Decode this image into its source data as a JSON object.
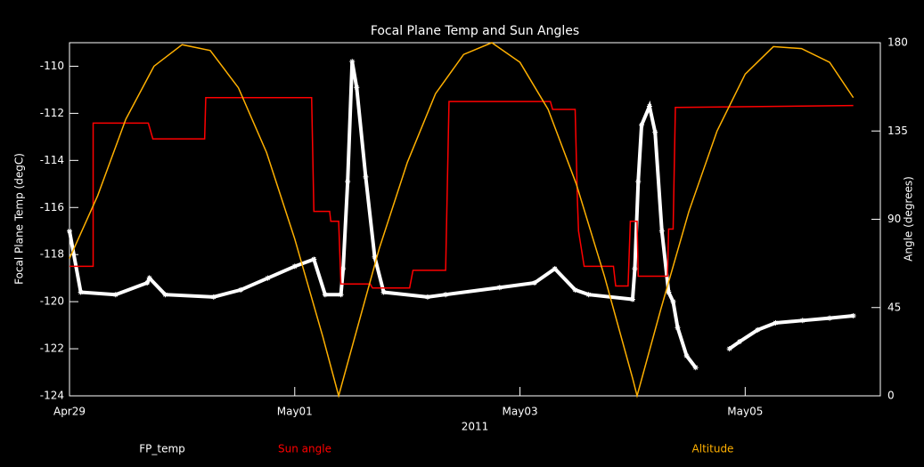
{
  "chart_data": {
    "type": "line",
    "title": "Focal Plane Temp and Sun Angles",
    "x_label": "2011",
    "y_label": "Focal Plane Temp (degC)",
    "y2_label": "Angle (degrees)",
    "xlim": [
      0,
      7.2
    ],
    "xticks": [
      {
        "value": 0,
        "label": "Apr29"
      },
      {
        "value": 2,
        "label": "May01"
      },
      {
        "value": 4,
        "label": "May03"
      },
      {
        "value": 6,
        "label": "May05"
      }
    ],
    "ylim": [
      -124,
      -109
    ],
    "yticks": [
      -124,
      -122,
      -120,
      -118,
      -116,
      -114,
      -112,
      -110
    ],
    "y2lim": [
      0,
      180
    ],
    "y2ticks": [
      0,
      45,
      90,
      135,
      180
    ],
    "series": [
      {
        "name": "FP_temp",
        "color": "#ffffff",
        "marker": "asterisk",
        "x": [
          0,
          0.1,
          0.41,
          0.69,
          0.71,
          0.85,
          1.28,
          1.52,
          1.76,
          2.0,
          2.17,
          2.27,
          2.41,
          2.43,
          2.47,
          2.51,
          2.55,
          2.63,
          2.71,
          2.79,
          3.18,
          3.34,
          3.82,
          4.13,
          4.31,
          4.49,
          4.61,
          5.0,
          5.02,
          5.05,
          5.08,
          5.15,
          5.2,
          5.26,
          5.32,
          5.36,
          5.4,
          5.48,
          5.56,
          5.8,
          5.86,
          5.95,
          6.11,
          6.27,
          6.51,
          6.75,
          6.96
        ],
        "values": [
          -117,
          -119.6,
          -119.7,
          -119.2,
          -119.0,
          -119.7,
          -119.8,
          -119.5,
          -119.0,
          -118.5,
          -118.2,
          -119.7,
          -119.7,
          -118.6,
          -114.9,
          -109.8,
          -110.9,
          -114.7,
          -118.1,
          -119.6,
          -119.8,
          -119.7,
          -119.4,
          -119.2,
          -118.6,
          -119.5,
          -119.7,
          -119.9,
          -118.6,
          -114.9,
          -112.5,
          -111.7,
          -112.8,
          -117.0,
          -119.6,
          -120.0,
          -121.1,
          -122.3,
          -122.8,
          null,
          -122.0,
          -121.7,
          -121.2,
          -120.9,
          -120.8,
          -120.7,
          -120.6
        ]
      },
      {
        "name": "Sun angle",
        "color": "#ff0000",
        "axis": "y2",
        "x": [
          0,
          0.21,
          0.21,
          0.7,
          0.74,
          1.2,
          1.21,
          2.15,
          2.17,
          2.31,
          2.32,
          2.39,
          2.41,
          2.67,
          2.69,
          3.02,
          3.05,
          3.34,
          3.37,
          4.27,
          4.29,
          4.49,
          4.51,
          4.52,
          4.57,
          4.83,
          4.85,
          4.96,
          4.98,
          5.04,
          5.05,
          5.31,
          5.32,
          5.36,
          5.38,
          6.96
        ],
        "values": [
          66,
          66,
          139,
          139,
          131,
          131,
          152,
          152,
          94,
          94,
          89,
          89,
          57,
          57,
          55,
          55,
          64,
          64,
          150,
          150,
          146,
          146,
          100,
          84,
          66,
          66,
          56,
          56,
          89,
          89,
          61,
          61,
          85,
          85,
          147,
          148
        ]
      },
      {
        "name": "Altitude",
        "color": "#ffb000",
        "axis": "y2",
        "x": [
          0,
          0.25,
          0.5,
          0.75,
          1.0,
          1.25,
          1.5,
          1.75,
          2.0,
          2.25,
          2.39,
          2.5,
          2.75,
          3.0,
          3.25,
          3.5,
          3.75,
          4.0,
          4.25,
          4.5,
          4.75,
          5.0,
          5.04,
          5.25,
          5.5,
          5.75,
          6.0,
          6.25,
          6.5,
          6.75,
          6.96
        ],
        "values": [
          70,
          102,
          141,
          168,
          179,
          176,
          157,
          124,
          80,
          30,
          0,
          23,
          75,
          119,
          154,
          174,
          180,
          170,
          146,
          108,
          61,
          9,
          0,
          44,
          94,
          135,
          164,
          178,
          177,
          170,
          152
        ]
      }
    ]
  }
}
